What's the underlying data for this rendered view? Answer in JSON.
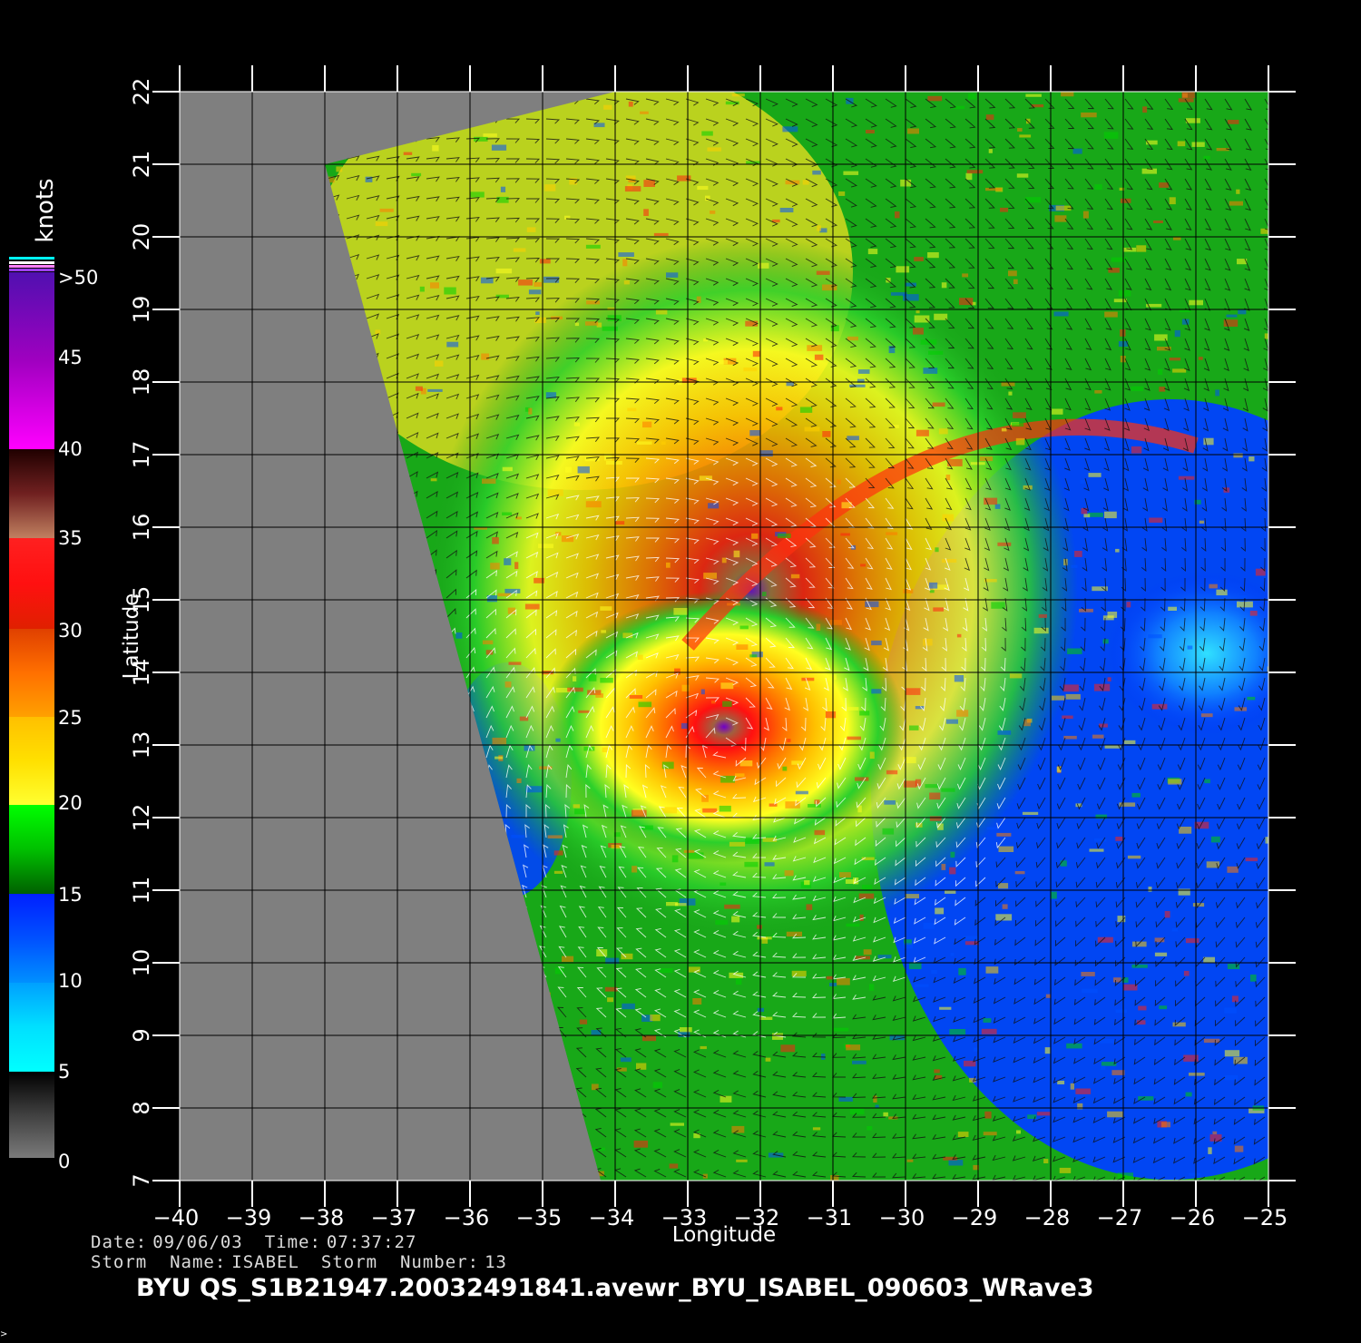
{
  "map": {
    "type": "scatterometer-wind-map",
    "lon_range": [
      -40,
      -25
    ],
    "lat_range": [
      7,
      22
    ],
    "x_ticks": [
      "−40",
      "−39",
      "−38",
      "−37",
      "−36",
      "−35",
      "−34",
      "−33",
      "−32",
      "−31",
      "−30",
      "−29",
      "−28",
      "−27",
      "−26",
      "−25"
    ],
    "y_ticks": [
      "7",
      "8",
      "9",
      "10",
      "11",
      "12",
      "13",
      "14",
      "15",
      "16",
      "17",
      "18",
      "19",
      "20",
      "21",
      "22"
    ],
    "x_label": "Longitude",
    "y_label": "Latitude",
    "no_data_color": "#7f7f7f",
    "storm_center": {
      "lon": -32.5,
      "lat": 13.0
    },
    "swath_west_edge": [
      [
        -38.0,
        21.0
      ],
      [
        -34.2,
        7.0
      ]
    ],
    "swath_north_edge": [
      [
        -38.0,
        21.0
      ],
      [
        -34.0,
        22.0
      ]
    ],
    "swath_east_edge": [
      [
        -26.0,
        22.0
      ],
      [
        -25.0,
        17.5
      ]
    ]
  },
  "colorbar": {
    "title": "knots",
    "labels": [
      ">50",
      "45",
      "40",
      "35",
      "30",
      "25",
      "20",
      "15",
      "10",
      "5",
      "0"
    ],
    "colors": {
      "gray": "#7a7a7a",
      "cyan": "#00ffff",
      "blue": "#0040ff",
      "green": "#00c000",
      "yellow": "#ffff20",
      "orange": "#ff7a00",
      "red": "#ff1010",
      "brown": "#a06040",
      "magenta": "#ff00ff",
      "purple": "#7000c8"
    }
  },
  "info": {
    "date_label": "Date:",
    "date": "09/06/03",
    "time_label": "Time:",
    "time": "07:37:27",
    "storm_name_label": "Storm  Name:",
    "storm_name": "ISABEL",
    "storm_number_label": "Storm  Number:",
    "storm_number": "13"
  },
  "product_id": "BYU  QS_S1B21947.20032491841.avewr_BYU_ISABEL_090603_WRave3",
  "corner_mark": ">"
}
